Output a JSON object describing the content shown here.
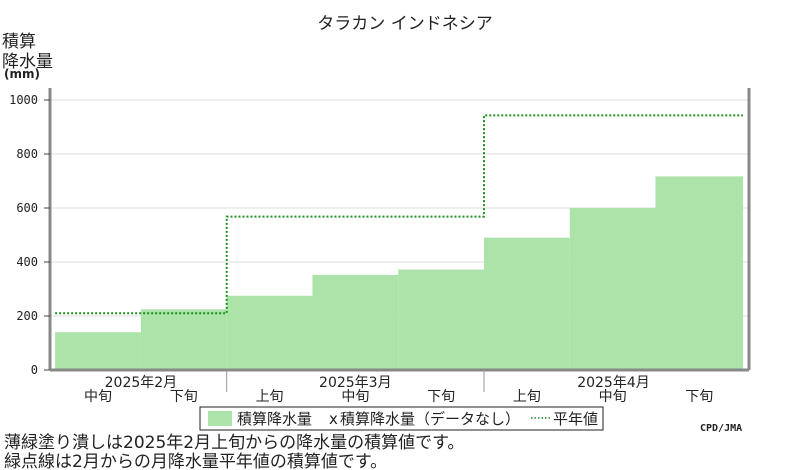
{
  "chart_data": {
    "type": "area",
    "title": "タラカン インドネシア",
    "ylabel_lines": [
      "積算",
      "降水量"
    ],
    "yunit": "(mm)",
    "ylim": [
      0,
      1000
    ],
    "yticks": [
      0,
      200,
      400,
      600,
      800,
      1000
    ],
    "months": [
      "2025年2月",
      "2025年3月",
      "2025年4月"
    ],
    "periods": [
      {
        "month": "2025年2月",
        "label": "中旬"
      },
      {
        "month": "2025年2月",
        "label": "下旬"
      },
      {
        "month": "2025年3月",
        "label": "上旬"
      },
      {
        "month": "2025年3月",
        "label": "中旬"
      },
      {
        "month": "2025年3月",
        "label": "下旬"
      },
      {
        "month": "2025年4月",
        "label": "上旬"
      },
      {
        "month": "2025年4月",
        "label": "中旬"
      },
      {
        "month": "2025年4月",
        "label": "下旬"
      }
    ],
    "series": [
      {
        "name": "積算降水量",
        "style": "filled-step",
        "color": "#abe3a9",
        "values": [
          140,
          225,
          275,
          352,
          372,
          490,
          600,
          717
        ]
      },
      {
        "name": "積算降水量（データなし）",
        "style": "marker",
        "marker": "x",
        "color": "#222222",
        "values": []
      },
      {
        "name": "平年値",
        "style": "dotted-step",
        "color": "#1f8f1f",
        "values": [
          210,
          210,
          568,
          568,
          568,
          943,
          943,
          943
        ]
      }
    ],
    "credit": "CPD/JMA",
    "notes": [
      "薄緑塗り潰しは2025年2月上旬からの降水量の積算値です。",
      "緑点線は2月からの月降水量平年値の積算値です。"
    ]
  }
}
